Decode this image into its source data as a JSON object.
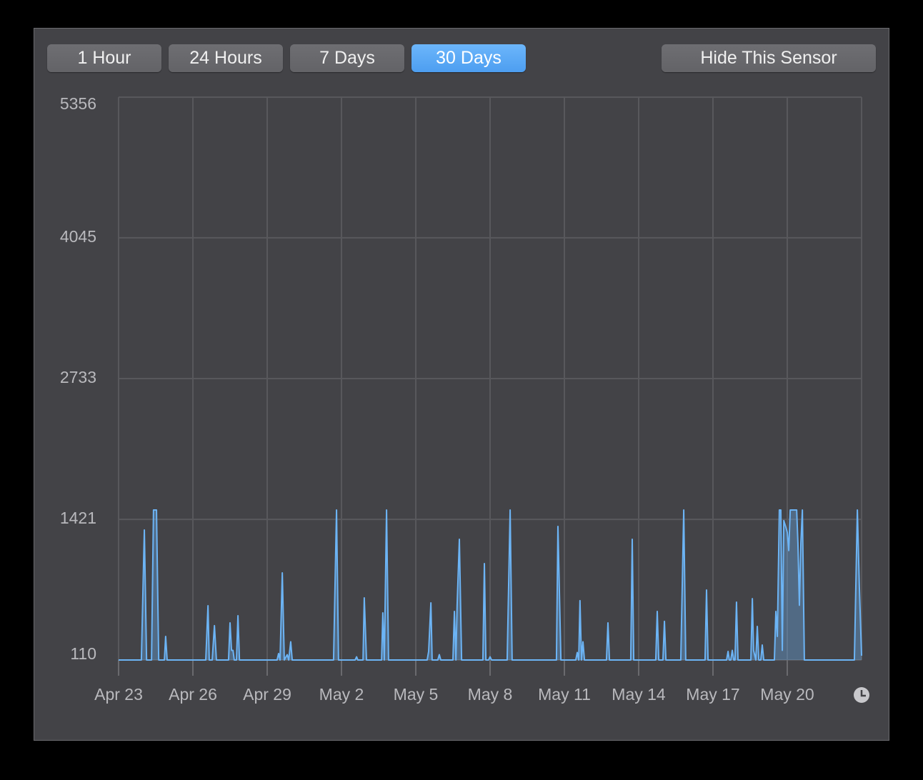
{
  "buttons": [
    {
      "label": "1 Hour"
    },
    {
      "label": "24 Hours"
    },
    {
      "label": "7 Days"
    },
    {
      "label": "30 Days"
    },
    {
      "label": "Hide This Sensor"
    }
  ],
  "chart_data": {
    "type": "line",
    "color": "#6cb4f5",
    "grid": true,
    "ylim": [
      110,
      5356
    ],
    "yticks": [
      110,
      1421,
      2733,
      4045,
      5356
    ],
    "xlim": [
      0,
      30
    ],
    "xticks": [
      {
        "value": 0,
        "label": "Apr 23"
      },
      {
        "value": 3,
        "label": "Apr 26"
      },
      {
        "value": 6,
        "label": "Apr 29"
      },
      {
        "value": 9,
        "label": "May 2"
      },
      {
        "value": 12,
        "label": "May 5"
      },
      {
        "value": 15,
        "label": "May 8"
      },
      {
        "value": 18,
        "label": "May 11"
      },
      {
        "value": 21,
        "label": "May 14"
      },
      {
        "value": 24,
        "label": "May 17"
      },
      {
        "value": 27,
        "label": "May 20"
      }
    ],
    "x": [
      0,
      0.92,
      1.04,
      1.13,
      1.33,
      1.41,
      1.53,
      1.62,
      1.85,
      1.9,
      1.96,
      3.52,
      3.61,
      3.66,
      3.78,
      3.87,
      3.95,
      4.44,
      4.5,
      4.56,
      4.62,
      4.67,
      4.76,
      4.82,
      4.88,
      6.4,
      6.46,
      6.52,
      6.61,
      6.69,
      6.81,
      6.87,
      6.95,
      7.01,
      8.68,
      8.8,
      8.88,
      9.55,
      9.61,
      9.66,
      9.87,
      9.92,
      10.01,
      10.62,
      10.67,
      10.73,
      10.82,
      10.9,
      12.46,
      12.52,
      12.61,
      12.66,
      12.89,
      12.95,
      13.01,
      13.5,
      13.56,
      13.62,
      13.67,
      13.76,
      13.85,
      14.71,
      14.77,
      14.83,
      14.94,
      15,
      15.06,
      15.69,
      15.81,
      15.89,
      17.68,
      17.74,
      17.86,
      18.46,
      18.52,
      18.58,
      18.63,
      18.69,
      18.75,
      18.81,
      19.7,
      19.76,
      19.82,
      20.68,
      20.74,
      20.8,
      21.69,
      21.75,
      21.81,
      21.98,
      22.04,
      22.1,
      22.7,
      22.82,
      22.9,
      23.68,
      23.74,
      23.8,
      24.55,
      24.61,
      24.66,
      24.72,
      24.78,
      24.84,
      24.89,
      24.95,
      25.01,
      25.53,
      25.59,
      25.64,
      25.73,
      25.79,
      25.85,
      25.93,
      25.99,
      26.05,
      26.48,
      26.54,
      26.6,
      26.68,
      26.74,
      26.8,
      26.86,
      26.94,
      27,
      27.06,
      27.12,
      27.38,
      27.43,
      27.49,
      27.55,
      27.61,
      27.69,
      29.71,
      29.83,
      29.91,
      30
    ],
    "series": [
      {
        "values": [
          110,
          110,
          1322,
          110,
          110,
          1508,
          1508,
          110,
          110,
          330,
          110,
          110,
          616,
          110,
          110,
          430,
          110,
          110,
          456,
          200,
          200,
          110,
          110,
          523,
          110,
          110,
          170,
          110,
          922,
          110,
          160,
          110,
          280,
          110,
          110,
          1508,
          110,
          110,
          140,
          110,
          110,
          689,
          110,
          110,
          549,
          110,
          1508,
          110,
          110,
          190,
          643,
          110,
          110,
          160,
          110,
          110,
          563,
          110,
          623,
          1235,
          110,
          110,
          1009,
          110,
          110,
          140,
          110,
          110,
          1508,
          110,
          110,
          1355,
          110,
          110,
          180,
          110,
          663,
          110,
          280,
          110,
          110,
          456,
          110,
          110,
          1235,
          110,
          110,
          563,
          110,
          110,
          470,
          110,
          110,
          1508,
          110,
          110,
          762,
          110,
          110,
          190,
          110,
          110,
          200,
          110,
          110,
          649,
          110,
          110,
          682,
          200,
          110,
          423,
          110,
          110,
          250,
          110,
          110,
          563,
          330,
          1508,
          1508,
          200,
          1410,
          1350,
          1300,
          1130,
          1508,
          1508,
          1200,
          620,
          1200,
          1508,
          110,
          110,
          1508,
          800,
          150
        ]
      }
    ]
  }
}
